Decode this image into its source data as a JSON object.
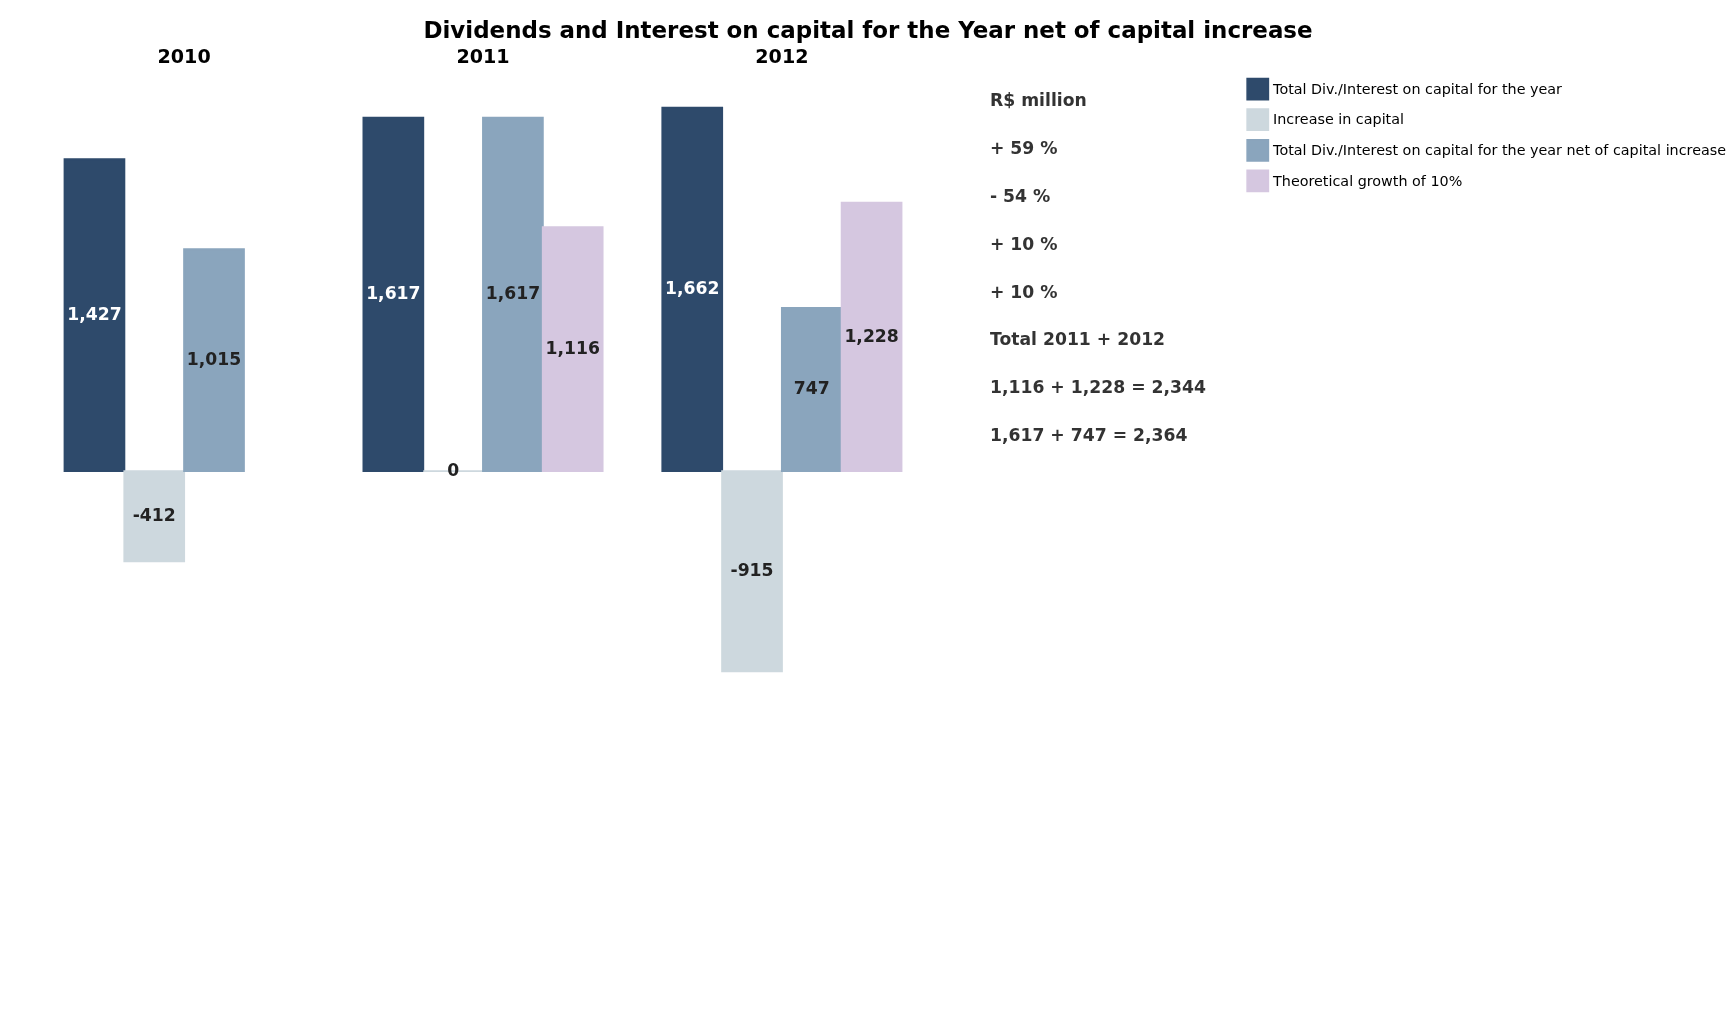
{
  "chart_data": {
    "type": "bar",
    "title": "Dividends and Interest on capital for the Year net of capital increase",
    "categories": [
      "2010",
      "2011",
      "2012"
    ],
    "series": [
      {
        "name": "Total Div./Interest on capital for the year",
        "color": "#2e4a6b",
        "values": [
          1427,
          1617,
          1662
        ],
        "value_labels": [
          "1,427",
          "1,617",
          "1,662"
        ]
      },
      {
        "name": "Increase in capital",
        "color": "#cdd8de",
        "values": [
          -412,
          0,
          -915
        ],
        "value_labels": [
          "-412",
          "0",
          "-915"
        ]
      },
      {
        "name": "Total Div./Interest on capital  for the year net of capital increase",
        "color": "#8aa5bd",
        "values": [
          1015,
          1617,
          747
        ],
        "value_labels": [
          "1,015",
          "1,617",
          "747"
        ]
      },
      {
        "name": "Theoretical growth of 10%",
        "color": "#d5c7e0",
        "values": [
          null,
          1116,
          1228
        ],
        "value_labels": [
          null,
          "1,116",
          "1,228"
        ]
      }
    ],
    "grid": false,
    "legend": "right",
    "annotations": [
      "R$ million",
      "+ 59 %",
      "- 54 %",
      "+ 10 %",
      "+ 10 %",
      "Total 2011 + 2012",
      "1,116 + 1,228 = 2,344",
      "1,617 + 747 = 2,364"
    ]
  }
}
